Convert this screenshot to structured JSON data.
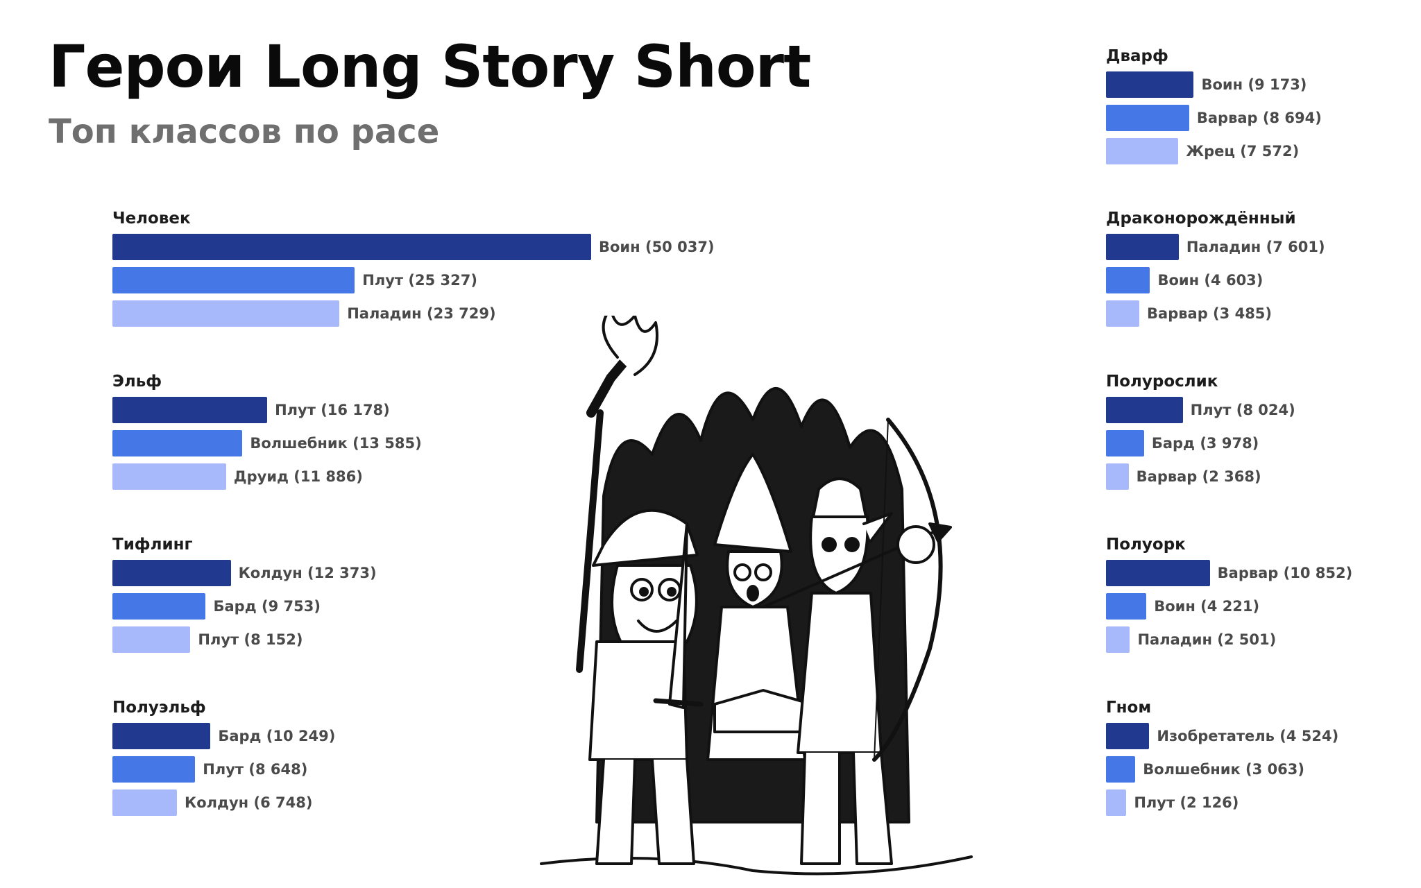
{
  "title": "Герои Long Story Short",
  "subtitle": "Топ классов по расе",
  "colors": {
    "rank1": "#213a8f",
    "rank2": "#4677e6",
    "rank3": "#a7b9fb"
  },
  "chart_data": [
    {
      "type": "bar",
      "orientation": "horizontal",
      "race": "Человек",
      "categories": [
        "Воин",
        "Плут",
        "Паладин"
      ],
      "values": [
        50037,
        25327,
        23729
      ],
      "labels": [
        "Воин (50 037)",
        "Плут (25 327)",
        "Паладин (23 729)"
      ]
    },
    {
      "type": "bar",
      "orientation": "horizontal",
      "race": "Эльф",
      "categories": [
        "Плут",
        "Волшебник",
        "Друид"
      ],
      "values": [
        16178,
        13585,
        11886
      ],
      "labels": [
        "Плут (16 178)",
        "Волшебник (13 585)",
        "Друид (11 886)"
      ]
    },
    {
      "type": "bar",
      "orientation": "horizontal",
      "race": "Тифлинг",
      "categories": [
        "Колдун",
        "Бард",
        "Плут"
      ],
      "values": [
        12373,
        9753,
        8152
      ],
      "labels": [
        "Колдун (12 373)",
        "Бард (9 753)",
        "Плут (8 152)"
      ]
    },
    {
      "type": "bar",
      "orientation": "horizontal",
      "race": "Полуэльф",
      "categories": [
        "Бард",
        "Плут",
        "Колдун"
      ],
      "values": [
        10249,
        8648,
        6748
      ],
      "labels": [
        "Бард (10 249)",
        "Плут (8 648)",
        "Колдун (6 748)"
      ]
    },
    {
      "type": "bar",
      "orientation": "horizontal",
      "race": "Дварф",
      "categories": [
        "Воин",
        "Варвар",
        "Жрец"
      ],
      "values": [
        9173,
        8694,
        7572
      ],
      "labels": [
        "Воин (9 173)",
        "Варвар (8 694)",
        "Жрец (7 572)"
      ]
    },
    {
      "type": "bar",
      "orientation": "horizontal",
      "race": "Драконорождённый",
      "categories": [
        "Паладин",
        "Воин",
        "Варвар"
      ],
      "values": [
        7601,
        4603,
        3485
      ],
      "labels": [
        "Паладин (7 601)",
        "Воин (4 603)",
        "Варвар (3 485)"
      ]
    },
    {
      "type": "bar",
      "orientation": "horizontal",
      "race": "Полурослик",
      "categories": [
        "Плут",
        "Бард",
        "Варвар"
      ],
      "values": [
        8024,
        3978,
        2368
      ],
      "labels": [
        "Плут (8 024)",
        "Бард (3 978)",
        "Варвар (2 368)"
      ]
    },
    {
      "type": "bar",
      "orientation": "horizontal",
      "race": "Полуорк",
      "categories": [
        "Варвар",
        "Воин",
        "Паладин"
      ],
      "values": [
        10852,
        4221,
        2501
      ],
      "labels": [
        "Варвар (10 852)",
        "Воин (4 221)",
        "Паладин (2 501)"
      ]
    },
    {
      "type": "bar",
      "orientation": "horizontal",
      "race": "Гном",
      "categories": [
        "Изобретатель",
        "Волшебник",
        "Плут"
      ],
      "values": [
        4524,
        3063,
        2126
      ],
      "labels": [
        "Изобретатель (4 524)",
        "Волшебник (3 063)",
        "Плут (2 126)"
      ]
    }
  ]
}
